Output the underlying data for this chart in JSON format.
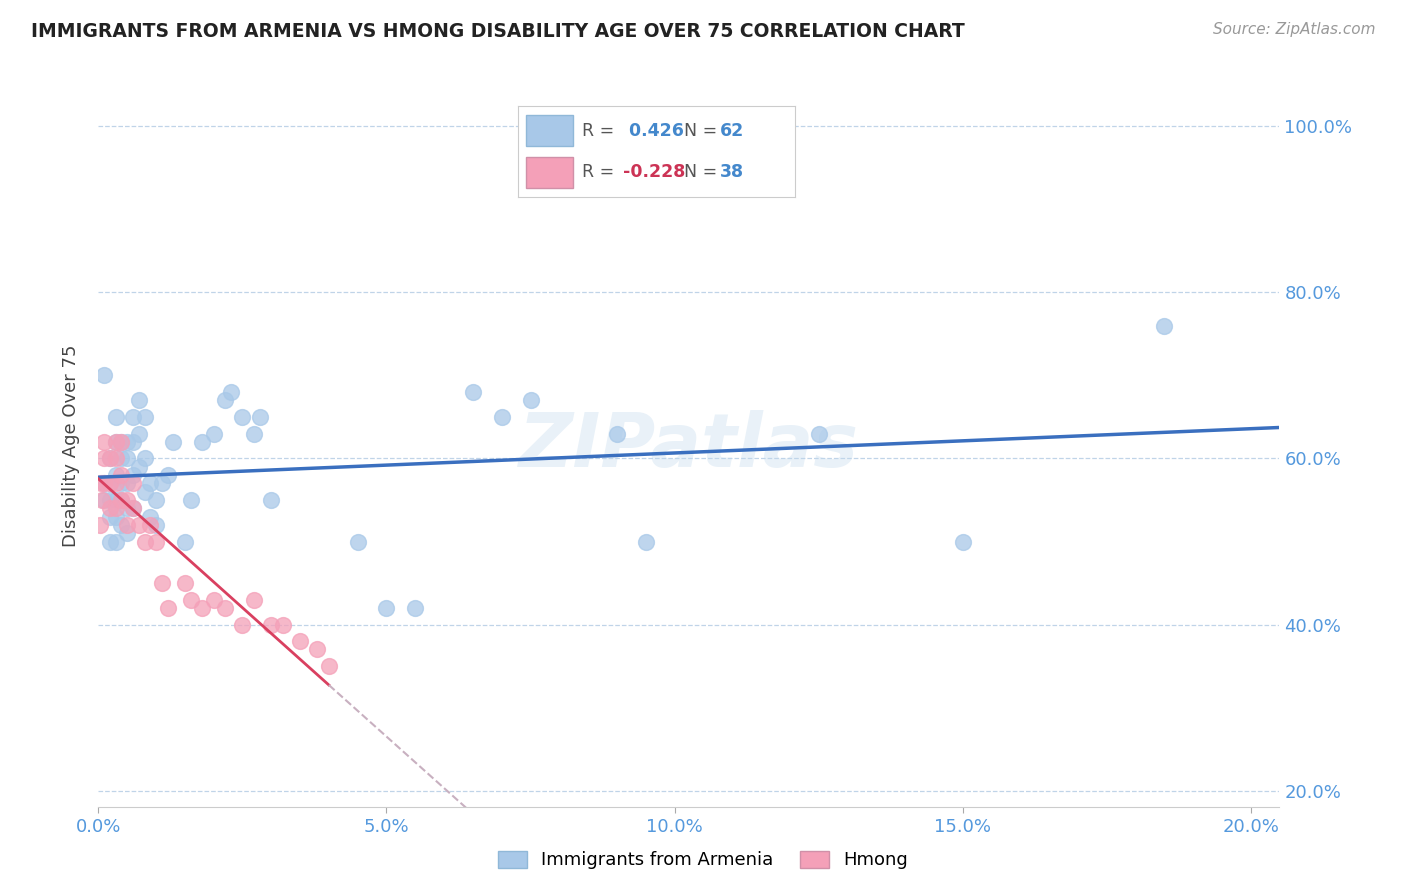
{
  "title": "IMMIGRANTS FROM ARMENIA VS HMONG DISABILITY AGE OVER 75 CORRELATION CHART",
  "source": "Source: ZipAtlas.com",
  "ylabel": "Disability Age Over 75",
  "xlabel_ticks": [
    "0.0%",
    "5.0%",
    "10.0%",
    "15.0%",
    "20.0%"
  ],
  "ylabel_ticks": [
    "20.0%",
    "40.0%",
    "60.0%",
    "80.0%",
    "100.0%"
  ],
  "armenia_R": 0.426,
  "armenia_N": 62,
  "hmong_R": -0.228,
  "hmong_N": 38,
  "armenia_color": "#a8c8e8",
  "hmong_color": "#f4a0b8",
  "armenia_line_color": "#3a6fbf",
  "hmong_line_color": "#d94060",
  "hmong_line_dashed_color": "#c8b0c0",
  "watermark": "ZIPatlas",
  "xlim": [
    0.0,
    0.205
  ],
  "ylim": [
    0.18,
    1.05
  ],
  "armenia_x": [
    0.001,
    0.001,
    0.001,
    0.002,
    0.002,
    0.002,
    0.002,
    0.002,
    0.003,
    0.003,
    0.003,
    0.003,
    0.003,
    0.003,
    0.004,
    0.004,
    0.004,
    0.004,
    0.004,
    0.005,
    0.005,
    0.005,
    0.005,
    0.005,
    0.006,
    0.006,
    0.006,
    0.006,
    0.007,
    0.007,
    0.007,
    0.008,
    0.008,
    0.008,
    0.009,
    0.009,
    0.01,
    0.01,
    0.011,
    0.012,
    0.013,
    0.015,
    0.016,
    0.018,
    0.02,
    0.022,
    0.023,
    0.025,
    0.027,
    0.028,
    0.03,
    0.045,
    0.05,
    0.055,
    0.065,
    0.07,
    0.075,
    0.09,
    0.095,
    0.125,
    0.15,
    0.185
  ],
  "armenia_y": [
    0.7,
    0.57,
    0.55,
    0.6,
    0.57,
    0.55,
    0.53,
    0.5,
    0.65,
    0.62,
    0.58,
    0.55,
    0.53,
    0.5,
    0.62,
    0.6,
    0.57,
    0.55,
    0.52,
    0.62,
    0.6,
    0.57,
    0.54,
    0.51,
    0.65,
    0.62,
    0.58,
    0.54,
    0.67,
    0.63,
    0.59,
    0.65,
    0.6,
    0.56,
    0.57,
    0.53,
    0.55,
    0.52,
    0.57,
    0.58,
    0.62,
    0.5,
    0.55,
    0.62,
    0.63,
    0.67,
    0.68,
    0.65,
    0.63,
    0.65,
    0.55,
    0.5,
    0.42,
    0.42,
    0.68,
    0.65,
    0.67,
    0.63,
    0.5,
    0.63,
    0.5,
    0.76
  ],
  "hmong_x": [
    0.0003,
    0.0005,
    0.0007,
    0.001,
    0.001,
    0.001,
    0.002,
    0.002,
    0.002,
    0.003,
    0.003,
    0.003,
    0.003,
    0.004,
    0.004,
    0.004,
    0.005,
    0.005,
    0.006,
    0.006,
    0.007,
    0.008,
    0.009,
    0.01,
    0.011,
    0.012,
    0.015,
    0.016,
    0.018,
    0.02,
    0.022,
    0.025,
    0.027,
    0.03,
    0.032,
    0.035,
    0.038,
    0.04
  ],
  "hmong_y": [
    0.52,
    0.57,
    0.55,
    0.62,
    0.6,
    0.57,
    0.6,
    0.57,
    0.54,
    0.62,
    0.6,
    0.57,
    0.54,
    0.62,
    0.58,
    0.55,
    0.55,
    0.52,
    0.57,
    0.54,
    0.52,
    0.5,
    0.52,
    0.5,
    0.45,
    0.42,
    0.45,
    0.43,
    0.42,
    0.43,
    0.42,
    0.4,
    0.43,
    0.4,
    0.4,
    0.38,
    0.37,
    0.35
  ]
}
